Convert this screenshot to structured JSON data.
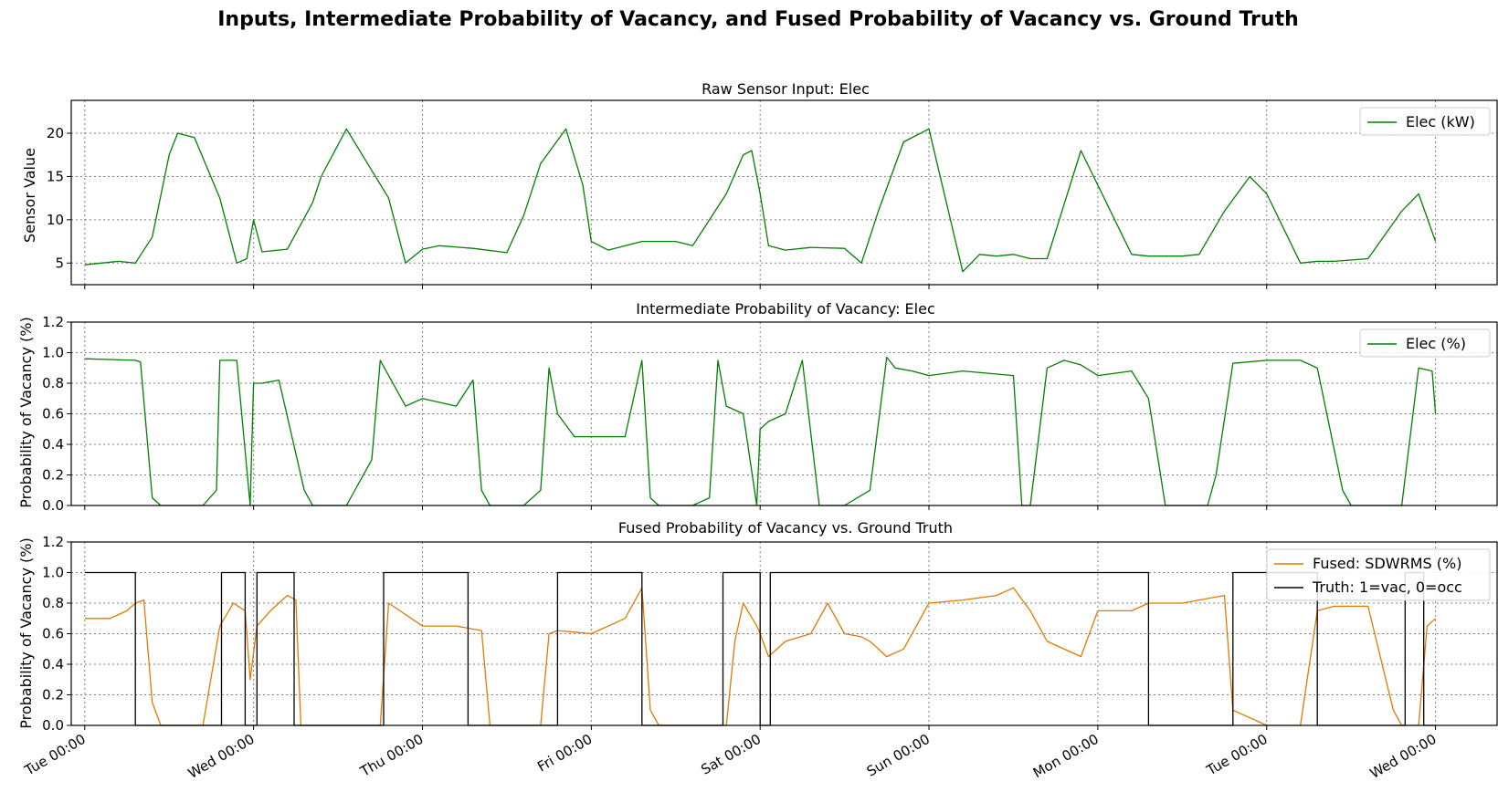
{
  "figure": {
    "suptitle": "Inputs, Intermediate Probability of Vacancy, and Fused Probability of Vacancy vs. Ground Truth"
  },
  "colors": {
    "elec": "#008000",
    "fused": "#e07b00",
    "truth": "#000000",
    "grid": "#808080"
  },
  "chart_data": [
    {
      "type": "line",
      "title": "Raw Sensor Input: Elec",
      "xlabel": "",
      "ylabel": "Sensor Value",
      "xticks": [
        "Tue 00:00",
        "Wed 00:00",
        "Thu 00:00",
        "Fri 00:00",
        "Sat 00:00",
        "Sun 00:00",
        "Mon 00:00",
        "Tue 00:00",
        "Wed 00:00"
      ],
      "xlim": [
        -0.08,
        8.37
      ],
      "ylim": [
        2.5,
        23.8
      ],
      "yticks": [
        "5",
        "10",
        "15",
        "20"
      ],
      "grid": true,
      "legend": "top-right",
      "series": [
        {
          "name": "Elec (kW)",
          "x": [
            0,
            0.2,
            0.3,
            0.4,
            0.5,
            0.55,
            0.65,
            0.8,
            0.9,
            0.96,
            1.0,
            1.05,
            1.2,
            1.35,
            1.4,
            1.55,
            1.8,
            1.9,
            2.0,
            2.1,
            2.3,
            2.5,
            2.6,
            2.7,
            2.85,
            2.95,
            3.0,
            3.1,
            3.3,
            3.5,
            3.6,
            3.7,
            3.8,
            3.9,
            3.95,
            4.0,
            4.05,
            4.15,
            4.3,
            4.5,
            4.6,
            4.7,
            4.85,
            5.0,
            5.2,
            5.3,
            5.4,
            5.5,
            5.6,
            5.7,
            5.9,
            6.2,
            6.3,
            6.5,
            6.6,
            6.75,
            6.9,
            7.0,
            7.2,
            7.3,
            7.4,
            7.6,
            7.8,
            7.9,
            8.0
          ],
          "values": [
            4.8,
            5.2,
            5.0,
            8.0,
            17.5,
            20.0,
            19.5,
            12.5,
            5.0,
            5.5,
            10.0,
            6.3,
            6.6,
            12.0,
            15.0,
            20.5,
            12.5,
            5.0,
            6.6,
            7.0,
            6.7,
            6.2,
            10.5,
            16.5,
            20.5,
            14.0,
            7.5,
            6.5,
            7.5,
            7.5,
            7.0,
            10.0,
            13.0,
            17.5,
            18.0,
            13.0,
            7.0,
            6.5,
            6.8,
            6.7,
            5.0,
            11.0,
            19.0,
            20.5,
            4.0,
            6.0,
            5.8,
            6.0,
            5.5,
            5.5,
            18.0,
            6.0,
            5.8,
            5.8,
            6.0,
            11.0,
            15.0,
            13.0,
            5.0,
            5.2,
            5.2,
            5.5,
            11.0,
            13.0,
            7.5
          ]
        }
      ]
    },
    {
      "type": "line",
      "title": "Intermediate Probability of Vacancy: Elec",
      "xlabel": "",
      "ylabel": "Probability of Vacancy (%)",
      "xticks": [
        "Tue 00:00",
        "Wed 00:00",
        "Thu 00:00",
        "Fri 00:00",
        "Sat 00:00",
        "Sun 00:00",
        "Mon 00:00",
        "Tue 00:00",
        "Wed 00:00"
      ],
      "xlim": [
        -0.08,
        8.37
      ],
      "ylim": [
        0.0,
        1.2
      ],
      "yticks": [
        "0.0",
        "0.2",
        "0.4",
        "0.6",
        "0.8",
        "1.0",
        "1.2"
      ],
      "grid": true,
      "legend": "top-right",
      "series": [
        {
          "name": "Elec (%)",
          "x": [
            0,
            0.3,
            0.33,
            0.4,
            0.45,
            0.7,
            0.78,
            0.8,
            0.9,
            0.98,
            1.0,
            1.05,
            1.15,
            1.3,
            1.35,
            1.4,
            1.55,
            1.7,
            1.75,
            1.9,
            2.0,
            2.2,
            2.3,
            2.35,
            2.4,
            2.6,
            2.7,
            2.75,
            2.8,
            2.9,
            3.0,
            3.2,
            3.3,
            3.35,
            3.4,
            3.6,
            3.7,
            3.75,
            3.8,
            3.9,
            3.98,
            4.0,
            4.05,
            4.15,
            4.25,
            4.35,
            4.5,
            4.65,
            4.75,
            4.8,
            4.9,
            5.0,
            5.2,
            5.5,
            5.55,
            5.6,
            5.7,
            5.8,
            5.9,
            6.0,
            6.2,
            6.3,
            6.4,
            6.65,
            6.7,
            6.8,
            7.0,
            7.2,
            7.3,
            7.45,
            7.5,
            7.7,
            7.8,
            7.9,
            7.98,
            8.0
          ],
          "values": [
            0.96,
            0.95,
            0.94,
            0.05,
            0.0,
            0.0,
            0.1,
            0.95,
            0.95,
            0.0,
            0.8,
            0.8,
            0.82,
            0.1,
            0.0,
            0.0,
            0.0,
            0.3,
            0.95,
            0.65,
            0.7,
            0.65,
            0.82,
            0.1,
            0.0,
            0.0,
            0.1,
            0.9,
            0.6,
            0.45,
            0.45,
            0.45,
            0.95,
            0.05,
            0.0,
            0.0,
            0.05,
            0.95,
            0.65,
            0.6,
            0.0,
            0.5,
            0.55,
            0.6,
            0.95,
            0.0,
            0.0,
            0.1,
            0.97,
            0.9,
            0.88,
            0.85,
            0.88,
            0.85,
            0.0,
            0.0,
            0.9,
            0.95,
            0.92,
            0.85,
            0.88,
            0.7,
            0.0,
            0.0,
            0.2,
            0.93,
            0.95,
            0.95,
            0.9,
            0.1,
            0.0,
            0.0,
            0.0,
            0.9,
            0.88,
            0.6
          ]
        }
      ]
    },
    {
      "type": "line",
      "title": "Fused Probability of Vacancy vs. Ground Truth",
      "xlabel": "",
      "ylabel": "Probability of Vacancy (%)",
      "xticks": [
        "Tue 00:00",
        "Wed 00:00",
        "Thu 00:00",
        "Fri 00:00",
        "Sat 00:00",
        "Sun 00:00",
        "Mon 00:00",
        "Tue 00:00",
        "Wed 00:00"
      ],
      "xlim": [
        -0.08,
        8.37
      ],
      "ylim": [
        0.0,
        1.2
      ],
      "yticks": [
        "0.0",
        "0.2",
        "0.4",
        "0.6",
        "0.8",
        "1.0",
        "1.2"
      ],
      "grid": true,
      "legend": "top-right",
      "series": [
        {
          "name": "Fused: SDWRMS (%)",
          "x": [
            0,
            0.15,
            0.25,
            0.3,
            0.35,
            0.4,
            0.45,
            0.7,
            0.8,
            0.88,
            0.95,
            0.98,
            1.02,
            1.1,
            1.2,
            1.25,
            1.28,
            1.35,
            1.4,
            1.5,
            1.75,
            1.8,
            2.0,
            2.2,
            2.35,
            2.4,
            2.5,
            2.7,
            2.75,
            2.8,
            3.0,
            3.2,
            3.3,
            3.35,
            3.4,
            3.6,
            3.8,
            3.85,
            3.9,
            3.98,
            4.0,
            4.05,
            4.15,
            4.3,
            4.4,
            4.5,
            4.6,
            4.65,
            4.75,
            4.85,
            5.0,
            5.2,
            5.4,
            5.5,
            5.6,
            5.7,
            5.9,
            6.0,
            6.2,
            6.3,
            6.4,
            6.5,
            6.75,
            6.8,
            7.0,
            7.2,
            7.3,
            7.4,
            7.6,
            7.75,
            7.8,
            7.9,
            7.95,
            8.0
          ],
          "values": [
            0.7,
            0.7,
            0.75,
            0.8,
            0.82,
            0.15,
            0.0,
            0.0,
            0.65,
            0.8,
            0.75,
            0.3,
            0.65,
            0.75,
            0.85,
            0.82,
            0.0,
            0.0,
            0.0,
            0.0,
            0.0,
            0.8,
            0.65,
            0.65,
            0.62,
            0.0,
            0.0,
            0.0,
            0.6,
            0.62,
            0.6,
            0.7,
            0.9,
            0.1,
            0.0,
            0.0,
            0.0,
            0.55,
            0.8,
            0.65,
            0.6,
            0.45,
            0.55,
            0.6,
            0.8,
            0.6,
            0.58,
            0.55,
            0.45,
            0.5,
            0.8,
            0.82,
            0.85,
            0.9,
            0.75,
            0.55,
            0.45,
            0.75,
            0.75,
            0.8,
            0.8,
            0.8,
            0.85,
            0.1,
            0.0,
            0.0,
            0.75,
            0.78,
            0.78,
            0.1,
            0.0,
            0.0,
            0.65,
            0.7
          ]
        },
        {
          "name": "Truth: 1=vac, 0=occ",
          "x": [
            0,
            0.3,
            0.3,
            0.81,
            0.81,
            0.95,
            0.95,
            1.02,
            1.02,
            1.24,
            1.24,
            1.77,
            1.77,
            2.27,
            2.27,
            2.8,
            2.8,
            3.3,
            3.3,
            3.78,
            3.78,
            4.0,
            4.0,
            4.06,
            4.06,
            4.62,
            4.62,
            6.3,
            6.3,
            6.8,
            6.8,
            7.3,
            7.3,
            7.82,
            7.82,
            7.93,
            7.93,
            8.0
          ],
          "values": [
            1,
            1,
            0,
            0,
            1,
            1,
            0,
            0,
            1,
            1,
            0,
            0,
            1,
            1,
            0,
            0,
            1,
            1,
            0,
            0,
            1,
            1,
            0,
            0,
            1,
            1,
            1,
            1,
            0,
            0,
            1,
            1,
            0,
            0,
            1,
            1,
            0,
            0
          ]
        }
      ]
    }
  ]
}
